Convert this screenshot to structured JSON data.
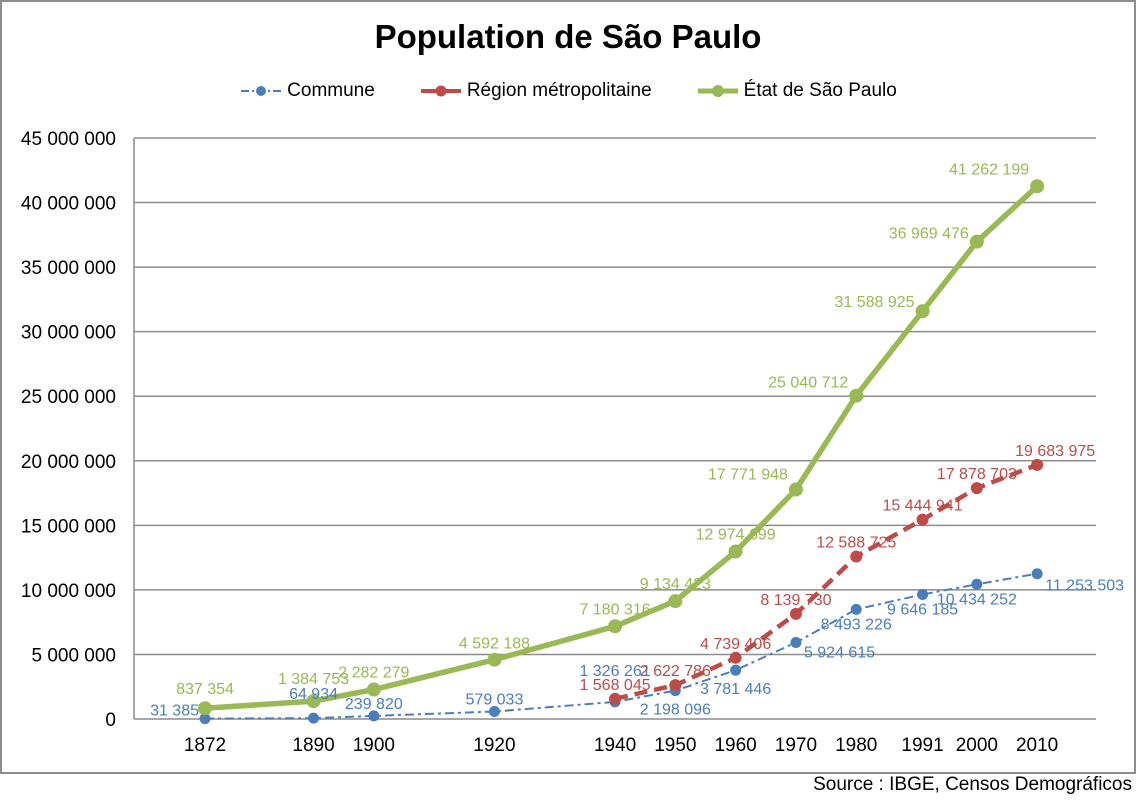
{
  "chart_data": {
    "type": "line",
    "title": "Population de São Paulo",
    "xlabel": "",
    "ylabel": "",
    "x": [
      1872,
      1890,
      1900,
      1920,
      1940,
      1950,
      1960,
      1970,
      1980,
      1991,
      2000,
      2010
    ],
    "x_tick_labels": [
      "1872",
      "1890",
      "1900",
      "1920",
      "1940",
      "1950",
      "1960",
      "1970",
      "1980",
      "1991",
      "2000",
      "2010"
    ],
    "ylim": [
      0,
      45000000
    ],
    "y_ticks": [
      0,
      5000000,
      10000000,
      15000000,
      20000000,
      25000000,
      30000000,
      35000000,
      40000000,
      45000000
    ],
    "y_tick_labels": [
      "0",
      "5 000 000",
      "10 000 000",
      "15 000 000",
      "20 000 000",
      "25 000 000",
      "30 000 000",
      "35 000 000",
      "40 000 000",
      "45 000 000"
    ],
    "grid": true,
    "legend_position": "top",
    "series": [
      {
        "name": "Commune",
        "color": "#4a7ebb",
        "style": "dash-dot",
        "x": [
          1872,
          1890,
          1900,
          1920,
          1940,
          1950,
          1960,
          1970,
          1980,
          1991,
          2000,
          2010
        ],
        "values": [
          31385,
          64934,
          239820,
          579033,
          1326261,
          2198096,
          3781446,
          5924615,
          8493226,
          9646185,
          10434252,
          11253503
        ],
        "labels": [
          "31 385",
          "64 934",
          "239 820",
          "579 033",
          "1 326 261",
          "2 198 096",
          "3 781 446",
          "5 924 615",
          "8 493 226",
          "9 646 185",
          "10 434 252",
          "11 253 503"
        ]
      },
      {
        "name": "Région métropolitaine",
        "color": "#be4b48",
        "style": "dashed",
        "x": [
          1940,
          1950,
          1960,
          1970,
          1980,
          1991,
          2000,
          2010
        ],
        "values": [
          1568045,
          2622786,
          4739406,
          8139730,
          12588725,
          15444941,
          17878703,
          19683975
        ],
        "labels": [
          "1 568 045",
          "2 622 786",
          "4 739 406",
          "8 139 730",
          "12 588 725",
          "15 444 941",
          "17 878 703",
          "19 683 975"
        ]
      },
      {
        "name": "État de São Paulo",
        "color": "#98b954",
        "style": "solid",
        "x": [
          1872,
          1890,
          1900,
          1920,
          1940,
          1950,
          1960,
          1970,
          1980,
          1991,
          2000,
          2010
        ],
        "values": [
          837354,
          1384753,
          2282279,
          4592188,
          7180316,
          9134423,
          12974699,
          17771948,
          25040712,
          31588925,
          36969476,
          41262199
        ],
        "labels": [
          "837 354",
          "1 384 753",
          "2 282 279",
          "4 592 188",
          "7 180 316",
          "9 134 423",
          "12 974 699",
          "17 771 948",
          "25 040 712",
          "31 588 925",
          "36 969 476",
          "41 262 199"
        ]
      }
    ],
    "source": "Source : IBGE, Censos Demográficos"
  }
}
